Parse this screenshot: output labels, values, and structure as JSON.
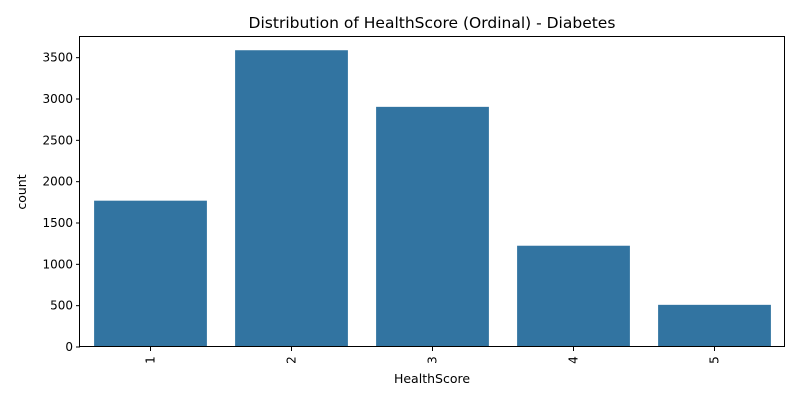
{
  "chart_data": {
    "type": "bar",
    "title": "Distribution of HealthScore (Ordinal) - Diabetes",
    "xlabel": "HealthScore",
    "ylabel": "count",
    "categories": [
      "1",
      "2",
      "3",
      "4",
      "5"
    ],
    "values": [
      1770,
      3590,
      2905,
      1225,
      510
    ],
    "ylim": [
      0,
      3750
    ],
    "yticks": [
      0,
      500,
      1000,
      1500,
      2000,
      2500,
      3000,
      3500
    ],
    "ytick_labels": [
      "0",
      "500",
      "1000",
      "1500",
      "2000",
      "2500",
      "3000",
      "3500"
    ],
    "xtick_rotation": "vertical",
    "grid": false,
    "bar_color": "#3274a1"
  }
}
